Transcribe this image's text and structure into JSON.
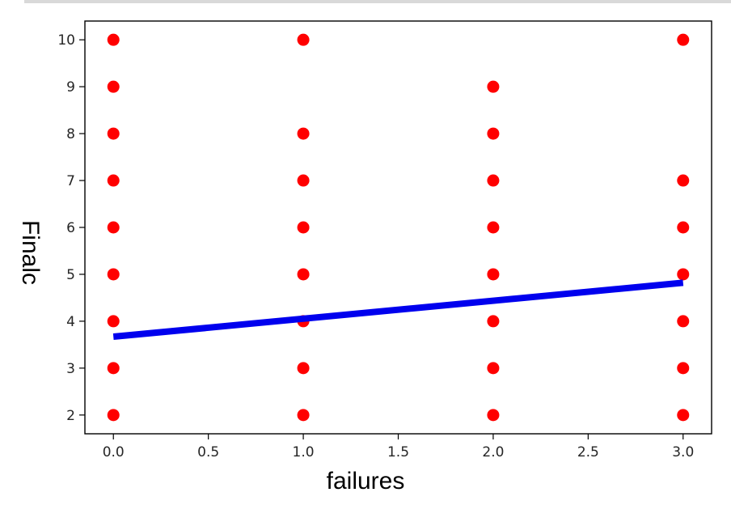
{
  "chart_data": {
    "type": "scatter",
    "xlabel": "failures",
    "ylabel": "Finalc",
    "xlim": [
      -0.15,
      3.15
    ],
    "ylim": [
      1.6,
      10.4
    ],
    "grid": false,
    "xticks": [
      0.0,
      0.5,
      1.0,
      1.5,
      2.0,
      2.5,
      3.0
    ],
    "xtick_labels": [
      "0.0",
      "0.5",
      "1.0",
      "1.5",
      "2.0",
      "2.5",
      "3.0"
    ],
    "yticks": [
      2,
      3,
      4,
      5,
      6,
      7,
      8,
      9,
      10
    ],
    "ytick_labels": [
      "2",
      "3",
      "4",
      "5",
      "6",
      "7",
      "8",
      "9",
      "10"
    ],
    "points": [
      {
        "x": 0,
        "y": 2
      },
      {
        "x": 0,
        "y": 3
      },
      {
        "x": 0,
        "y": 4
      },
      {
        "x": 0,
        "y": 5
      },
      {
        "x": 0,
        "y": 6
      },
      {
        "x": 0,
        "y": 7
      },
      {
        "x": 0,
        "y": 8
      },
      {
        "x": 0,
        "y": 9
      },
      {
        "x": 0,
        "y": 10
      },
      {
        "x": 1,
        "y": 2
      },
      {
        "x": 1,
        "y": 3
      },
      {
        "x": 1,
        "y": 4
      },
      {
        "x": 1,
        "y": 5
      },
      {
        "x": 1,
        "y": 6
      },
      {
        "x": 1,
        "y": 7
      },
      {
        "x": 1,
        "y": 8
      },
      {
        "x": 1,
        "y": 10
      },
      {
        "x": 2,
        "y": 2
      },
      {
        "x": 2,
        "y": 3
      },
      {
        "x": 2,
        "y": 4
      },
      {
        "x": 2,
        "y": 5
      },
      {
        "x": 2,
        "y": 6
      },
      {
        "x": 2,
        "y": 7
      },
      {
        "x": 2,
        "y": 8
      },
      {
        "x": 2,
        "y": 9
      },
      {
        "x": 3,
        "y": 2
      },
      {
        "x": 3,
        "y": 3
      },
      {
        "x": 3,
        "y": 4
      },
      {
        "x": 3,
        "y": 5
      },
      {
        "x": 3,
        "y": 6
      },
      {
        "x": 3,
        "y": 7
      },
      {
        "x": 3,
        "y": 10
      }
    ],
    "point_color": "#ff0000",
    "regression_line": {
      "x": [
        0,
        3
      ],
      "y": [
        3.67,
        4.82
      ],
      "color": "#0000ee"
    }
  }
}
